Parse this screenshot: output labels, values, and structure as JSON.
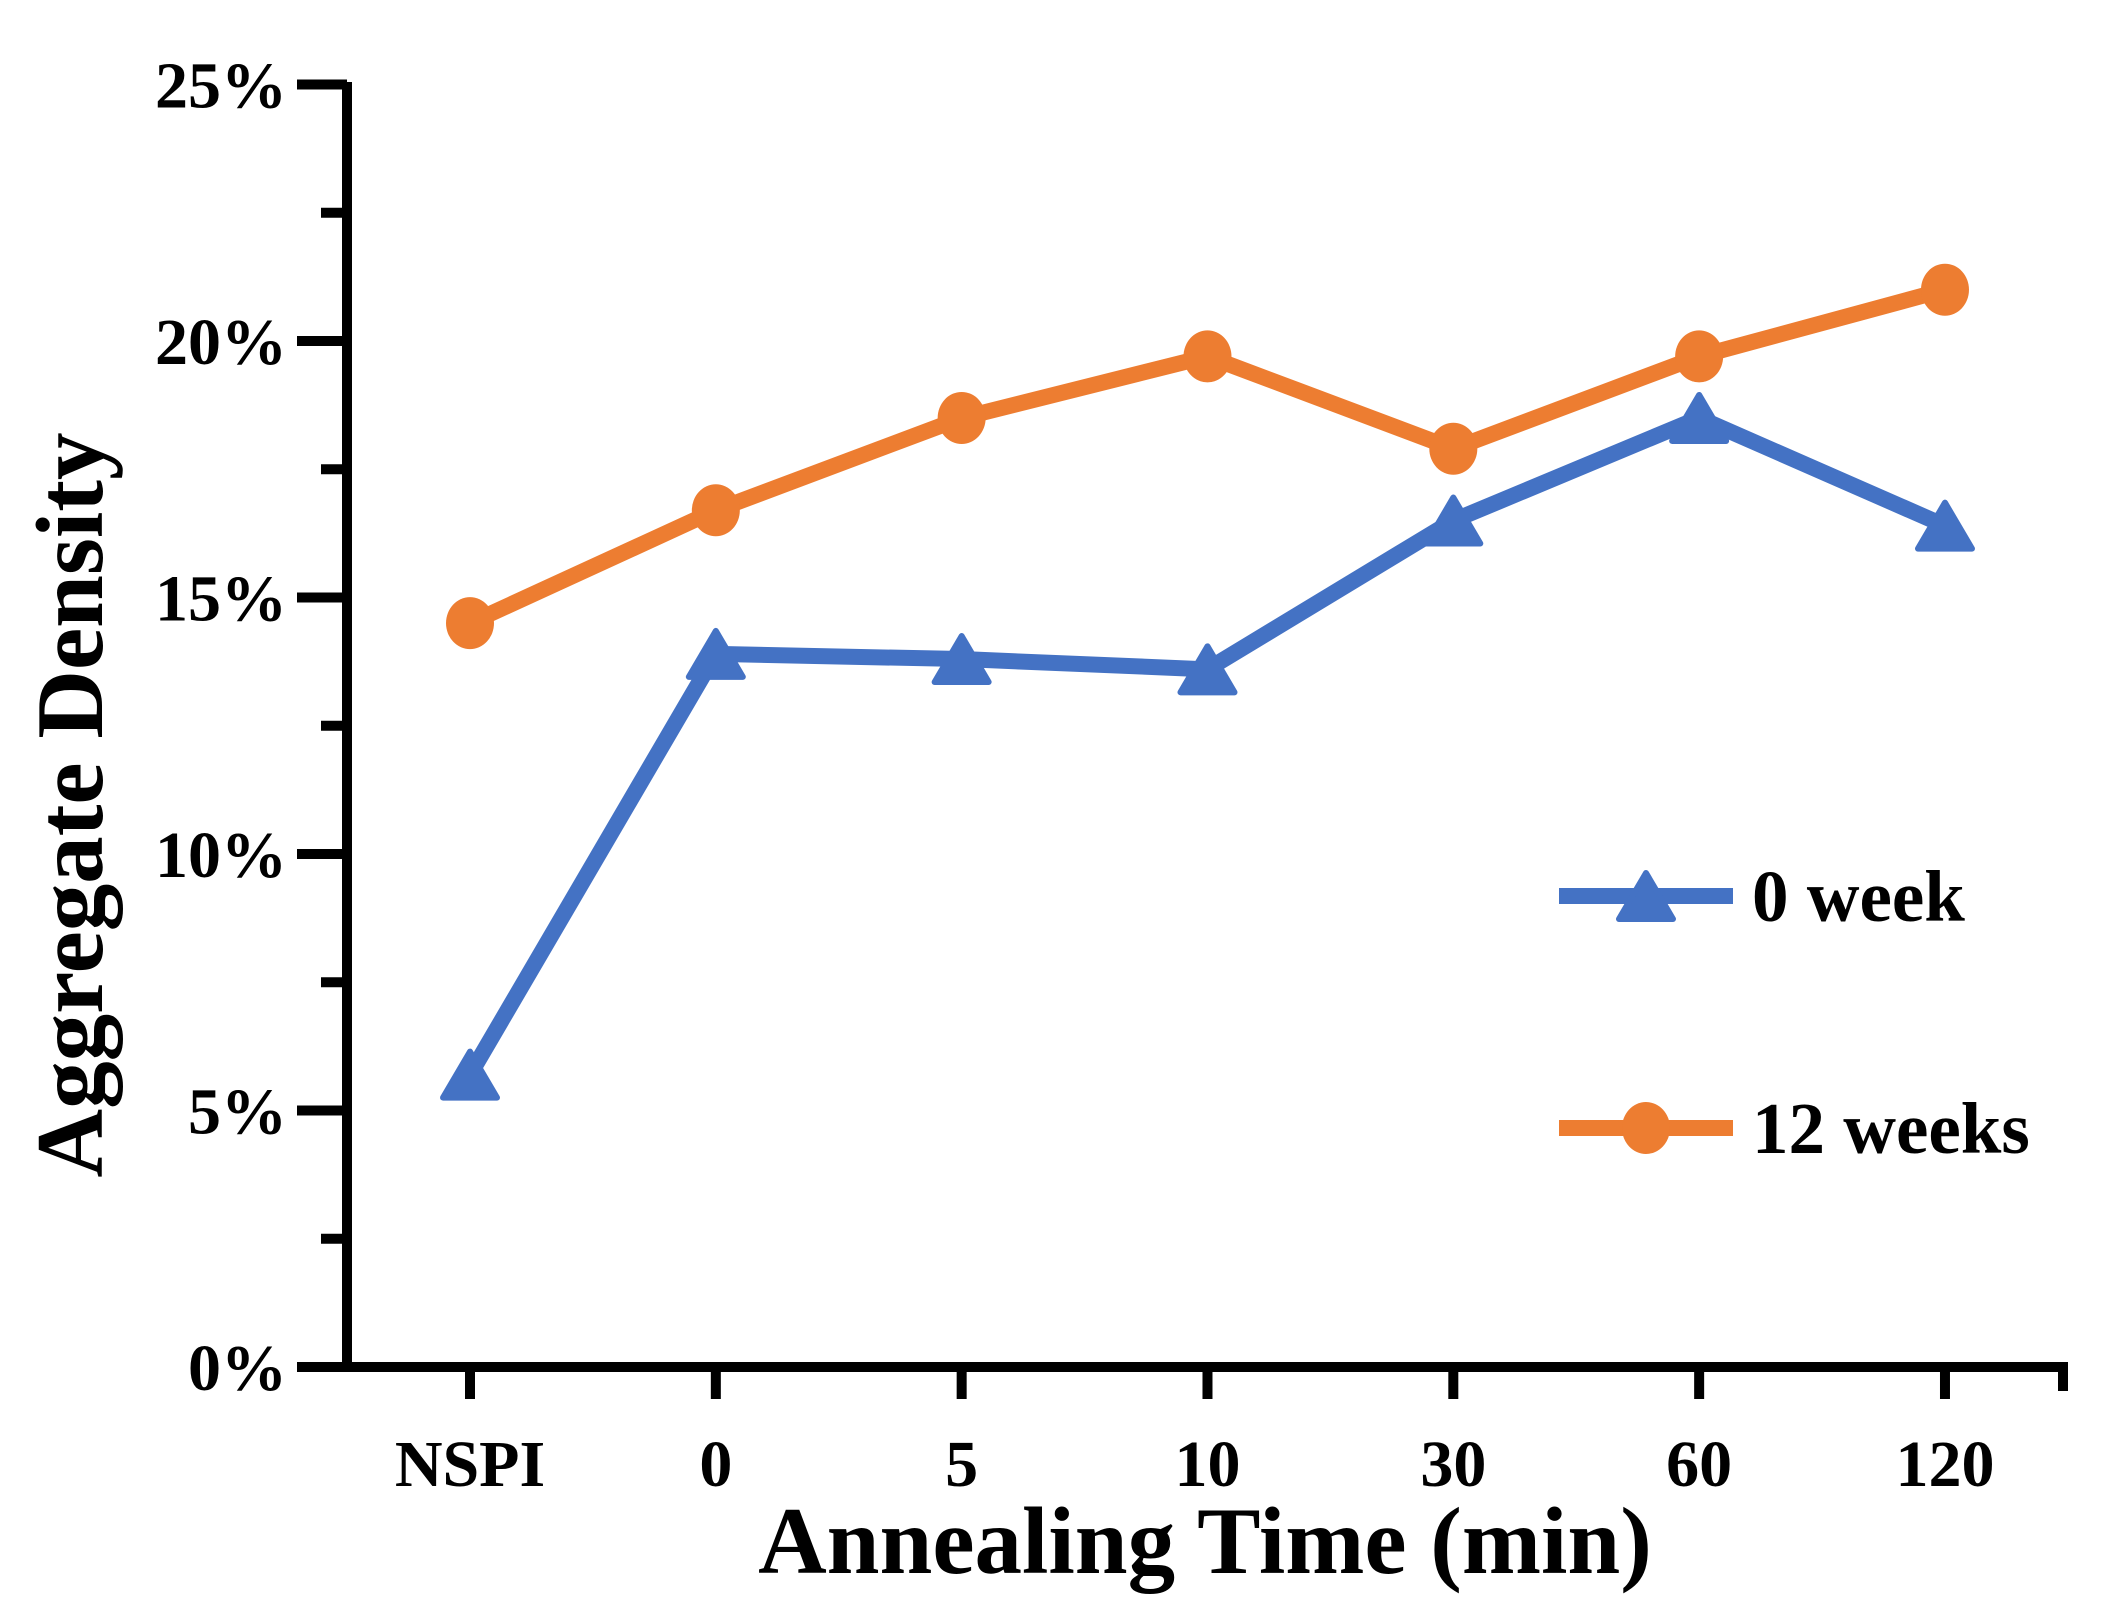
{
  "chart_data": {
    "type": "line",
    "title": "",
    "xlabel": "Annealing Time (min)",
    "ylabel": "Aggregate Density",
    "categories": [
      "NSPI",
      "0",
      "5",
      "10",
      "30",
      "60",
      "120"
    ],
    "series": [
      {
        "name": "0 week",
        "color": "#4472C4",
        "marker": "triangle",
        "values": [
          5.7,
          13.9,
          13.8,
          13.6,
          16.5,
          18.5,
          16.4
        ]
      },
      {
        "name": "12 weeks",
        "color": "#ED7D31",
        "marker": "circle",
        "values": [
          14.5,
          16.7,
          18.5,
          19.7,
          17.9,
          19.7,
          21.0
        ]
      }
    ],
    "ylim": [
      0,
      25
    ],
    "ytick_values": [
      0,
      5,
      10,
      15,
      20,
      25
    ],
    "ytick_labels": [
      "0%",
      "5%",
      "10%",
      "15%",
      "20%",
      "25%"
    ],
    "minor_ytick_values": [
      2.5,
      7.5,
      12.5,
      17.5,
      22.5
    ],
    "grid": false,
    "legend_position": "middle-right",
    "axis_color": "#000000",
    "text_color": "#000000"
  }
}
